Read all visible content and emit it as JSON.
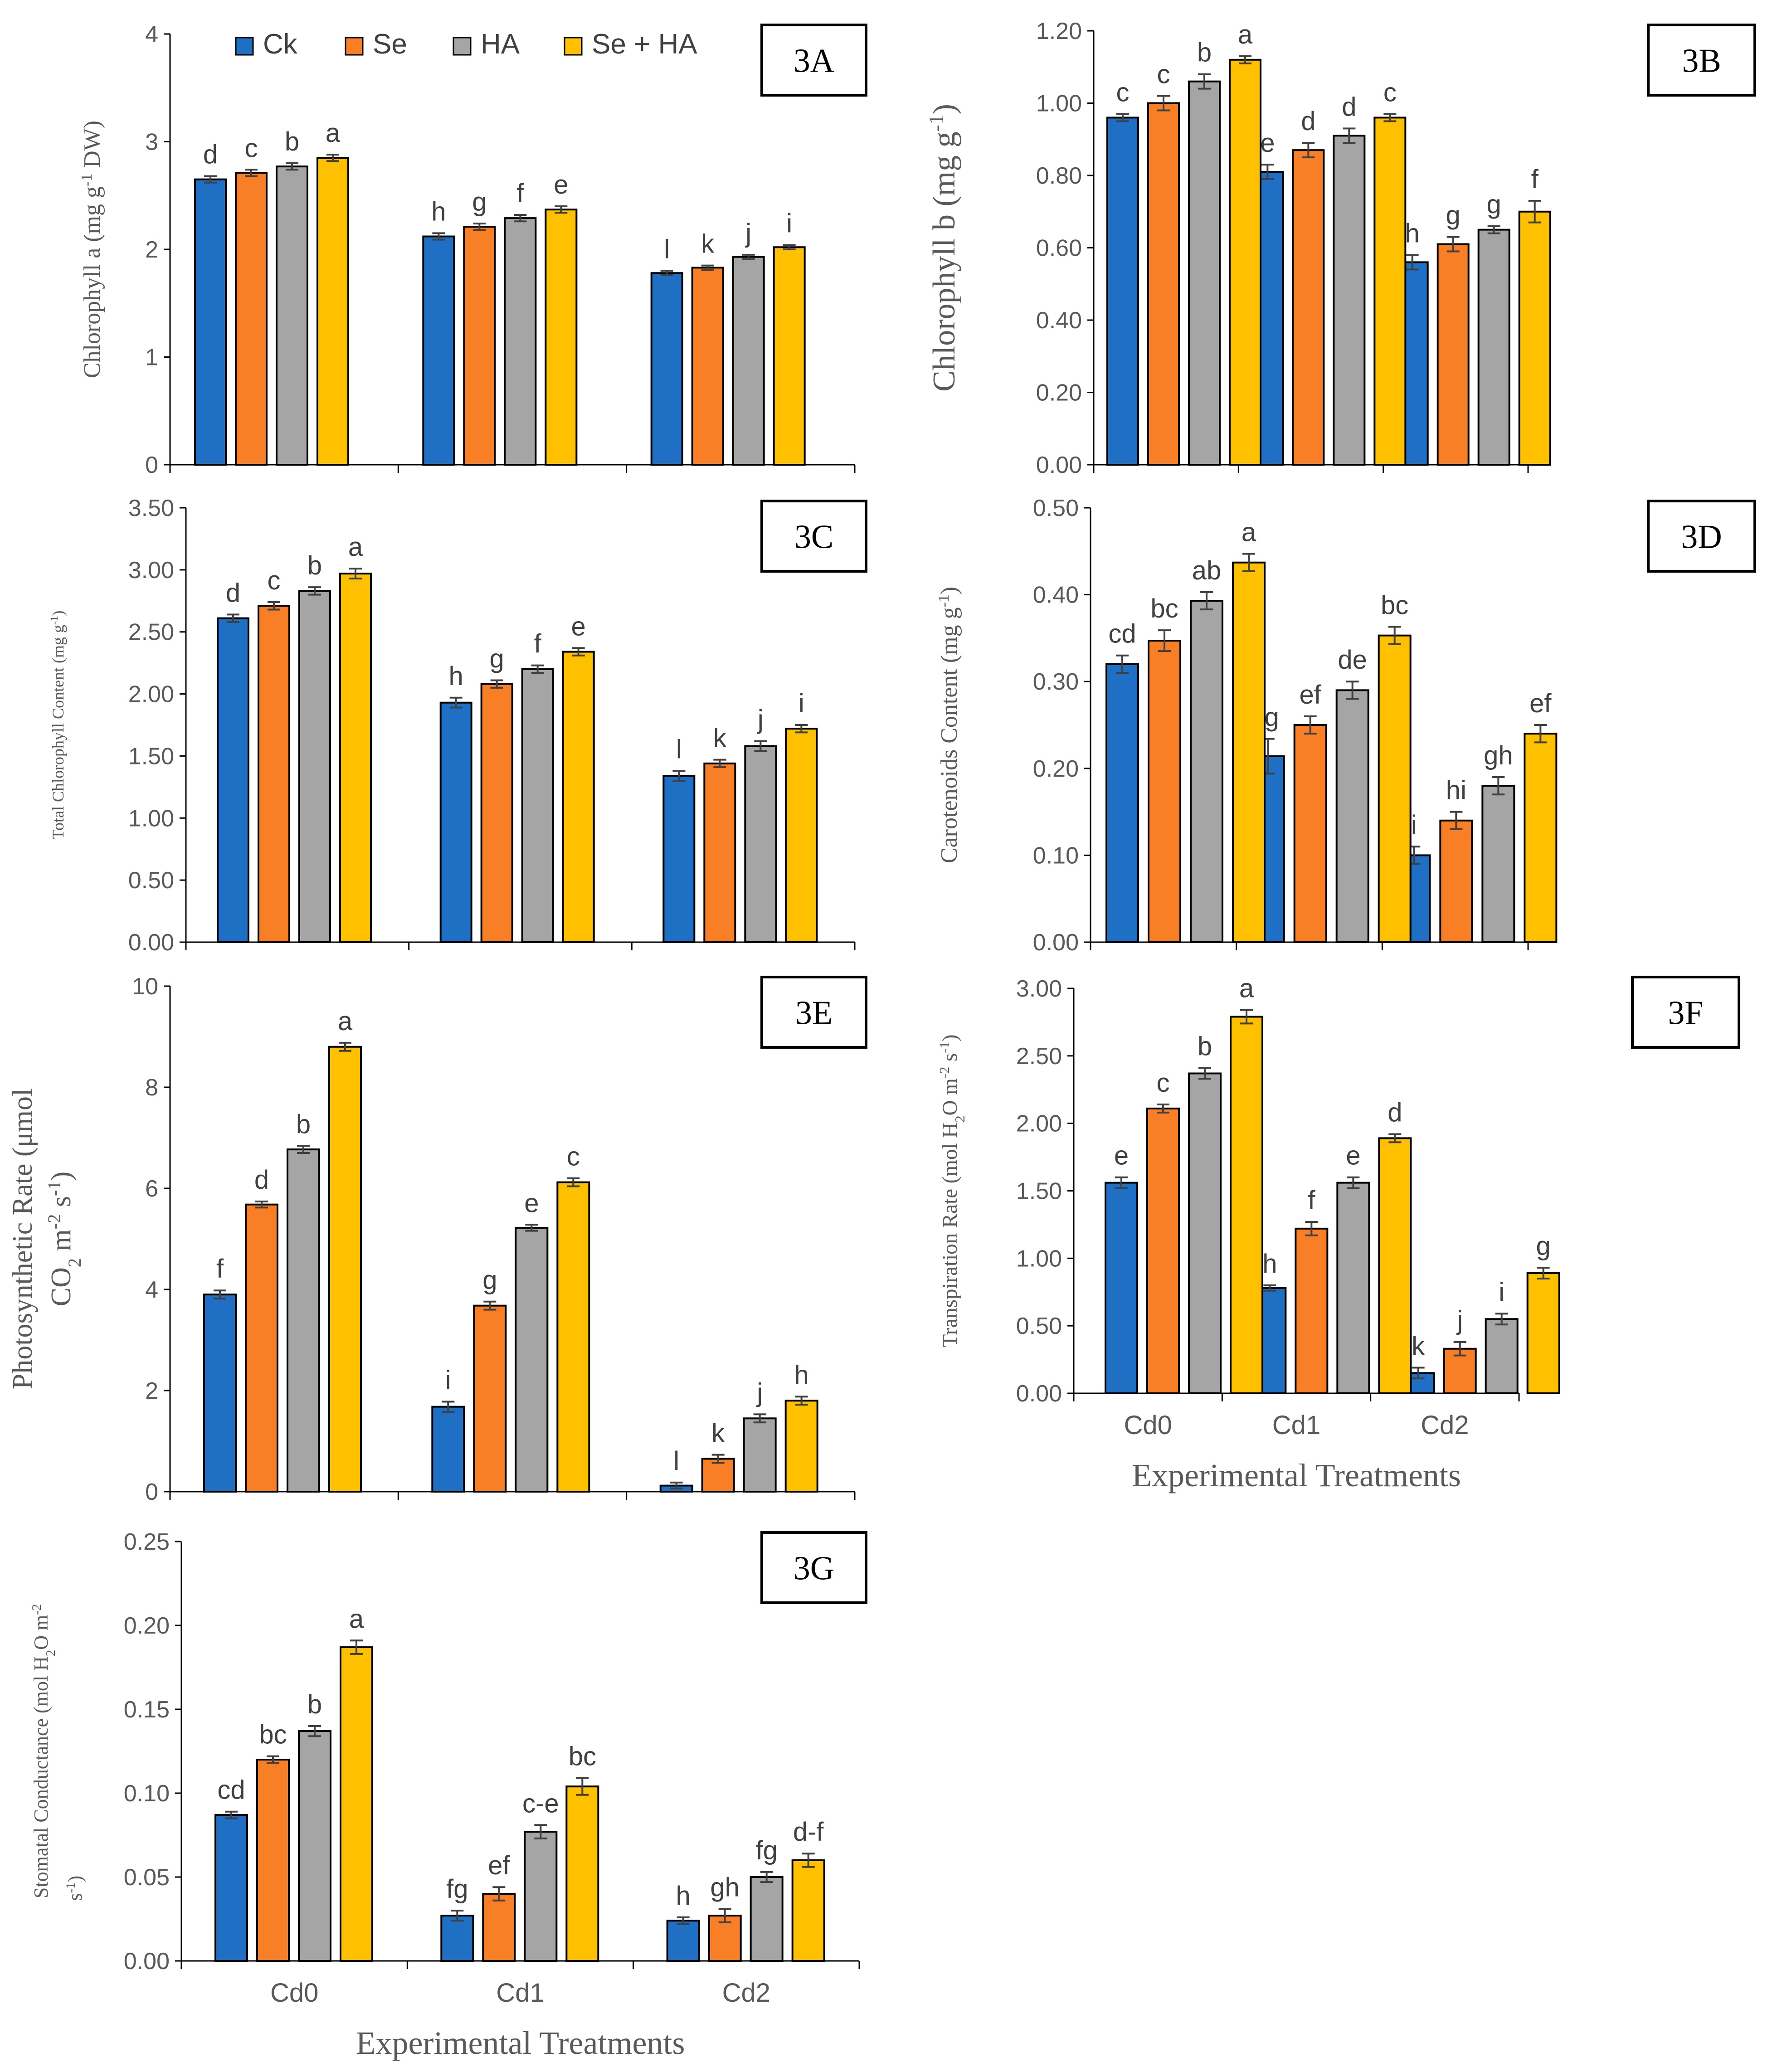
{
  "legend": [
    {
      "name": "Ck",
      "color": "#1f6fc5"
    },
    {
      "name": "Se",
      "color": "#f97f26"
    },
    {
      "name": "HA",
      "color": "#a5a5a5"
    },
    {
      "name": "Se + HA",
      "color": "#ffc000"
    }
  ],
  "x_axis_title": "Experimental Treatments",
  "chart_data": [
    {
      "panel": "3A",
      "type": "bar",
      "ylabel": {
        "text": "Chlorophyll a (mg g",
        "sup": "-1",
        "rest": " DW)"
      },
      "categories": [
        "Cd0",
        "Cd1",
        "Cd2"
      ],
      "ylim": [
        0,
        4
      ],
      "yticks": [
        "0",
        "1",
        "2",
        "3",
        "4"
      ],
      "series": [
        {
          "name": "Ck",
          "values": [
            2.65,
            2.12,
            1.78
          ],
          "errors": [
            0.03,
            0.03,
            0.02
          ],
          "letters": [
            "d",
            "h",
            "l"
          ]
        },
        {
          "name": "Se",
          "values": [
            2.71,
            2.21,
            1.83
          ],
          "errors": [
            0.03,
            0.03,
            0.02
          ],
          "letters": [
            "c",
            "g",
            "k"
          ]
        },
        {
          "name": "HA",
          "values": [
            2.77,
            2.29,
            1.93
          ],
          "errors": [
            0.03,
            0.03,
            0.02
          ],
          "letters": [
            "b",
            "f",
            "j"
          ]
        },
        {
          "name": "Se + HA",
          "values": [
            2.85,
            2.37,
            2.02
          ],
          "errors": [
            0.03,
            0.03,
            0.02
          ],
          "letters": [
            "a",
            "e",
            "i"
          ]
        }
      ]
    },
    {
      "panel": "3B",
      "type": "bar",
      "ylabel": {
        "text": "Chlorophyll b (mg g",
        "sup": "-1",
        "rest": ")"
      },
      "categories": [
        "Cd0",
        "Cd1",
        "Cd2"
      ],
      "ylim": [
        0,
        1.2
      ],
      "yticks": [
        "0.00",
        "0.20",
        "0.40",
        "0.60",
        "0.80",
        "1.00",
        "1.20"
      ],
      "series": [
        {
          "name": "Ck",
          "values": [
            0.96,
            0.81,
            0.56
          ],
          "errors": [
            0.01,
            0.02,
            0.02
          ],
          "letters": [
            "c",
            "e",
            "h"
          ]
        },
        {
          "name": "Se",
          "values": [
            1.0,
            0.87,
            0.61
          ],
          "errors": [
            0.02,
            0.02,
            0.02
          ],
          "letters": [
            "c",
            "d",
            "g"
          ]
        },
        {
          "name": "HA",
          "values": [
            1.06,
            0.91,
            0.65
          ],
          "errors": [
            0.02,
            0.02,
            0.01
          ],
          "letters": [
            "b",
            "d",
            "g"
          ]
        },
        {
          "name": "Se + HA",
          "values": [
            1.12,
            0.96,
            0.7
          ],
          "errors": [
            0.01,
            0.01,
            0.03
          ],
          "letters": [
            "a",
            "c",
            "f"
          ]
        }
      ]
    },
    {
      "panel": "3C",
      "type": "bar",
      "ylabel": {
        "text": "Total Chlorophyll Content (mg g",
        "sup": "-1",
        "rest": ")"
      },
      "categories": [
        "Cd0",
        "Cd1",
        "Cd2"
      ],
      "ylim": [
        0,
        3.5
      ],
      "yticks": [
        "0.00",
        "0.50",
        "1.00",
        "1.50",
        "2.00",
        "2.50",
        "3.00",
        "3.50"
      ],
      "series": [
        {
          "name": "Ck",
          "values": [
            2.61,
            1.93,
            1.34
          ],
          "errors": [
            0.03,
            0.04,
            0.04
          ],
          "letters": [
            "d",
            "h",
            "l"
          ]
        },
        {
          "name": "Se",
          "values": [
            2.71,
            2.08,
            1.44
          ],
          "errors": [
            0.03,
            0.03,
            0.03
          ],
          "letters": [
            "c",
            "g",
            "k"
          ]
        },
        {
          "name": "HA",
          "values": [
            2.83,
            2.2,
            1.58
          ],
          "errors": [
            0.03,
            0.03,
            0.04
          ],
          "letters": [
            "b",
            "f",
            "j"
          ]
        },
        {
          "name": "Se + HA",
          "values": [
            2.97,
            2.34,
            1.72
          ],
          "errors": [
            0.04,
            0.03,
            0.03
          ],
          "letters": [
            "a",
            "e",
            "i"
          ]
        }
      ]
    },
    {
      "panel": "3D",
      "type": "bar",
      "ylabel": {
        "text": "Carotenoids Content (mg g",
        "sup": "-1",
        "rest": ")"
      },
      "categories": [
        "Cd0",
        "Cd1",
        "Cd2"
      ],
      "ylim": [
        0,
        0.5
      ],
      "yticks": [
        "0.00",
        "0.10",
        "0.20",
        "0.30",
        "0.40",
        "0.50"
      ],
      "series": [
        {
          "name": "Ck",
          "values": [
            0.32,
            0.214,
            0.1
          ],
          "errors": [
            0.01,
            0.02,
            0.01
          ],
          "letters": [
            "cd",
            "fg",
            "i"
          ]
        },
        {
          "name": "Se",
          "values": [
            0.347,
            0.25,
            0.14
          ],
          "errors": [
            0.012,
            0.01,
            0.01
          ],
          "letters": [
            "bc",
            "ef",
            "hi"
          ]
        },
        {
          "name": "HA",
          "values": [
            0.393,
            0.29,
            0.18
          ],
          "errors": [
            0.01,
            0.01,
            0.01
          ],
          "letters": [
            "ab",
            "de",
            "gh"
          ]
        },
        {
          "name": "Se + HA",
          "values": [
            0.437,
            0.353,
            0.24
          ],
          "errors": [
            0.01,
            0.01,
            0.01
          ],
          "letters": [
            "a",
            "bc",
            "ef"
          ]
        }
      ]
    },
    {
      "panel": "3E",
      "type": "bar",
      "ylabel": {
        "line1": "Photosynthetic Rate (μmol",
        "line2": "CO",
        "sub": "2",
        "mid": " m",
        "sup1": "-2",
        "mid2": " s",
        "sup2": "-1",
        "end": ")"
      },
      "categories": [
        "Cd0",
        "Cd1",
        "Cd2"
      ],
      "ylim": [
        0,
        10
      ],
      "yticks": [
        "0",
        "2",
        "4",
        "6",
        "8",
        "10"
      ],
      "series": [
        {
          "name": "Ck",
          "values": [
            3.9,
            1.68,
            0.12
          ],
          "errors": [
            0.08,
            0.1,
            0.06
          ],
          "letters": [
            "f",
            "i",
            "l"
          ]
        },
        {
          "name": "Se",
          "values": [
            5.68,
            3.68,
            0.65
          ],
          "errors": [
            0.06,
            0.08,
            0.08
          ],
          "letters": [
            "d",
            "g",
            "k"
          ]
        },
        {
          "name": "HA",
          "values": [
            6.77,
            5.22,
            1.45
          ],
          "errors": [
            0.07,
            0.06,
            0.08
          ],
          "letters": [
            "b",
            "e",
            "j"
          ]
        },
        {
          "name": "Se + HA",
          "values": [
            8.8,
            6.12,
            1.8
          ],
          "errors": [
            0.08,
            0.08,
            0.08
          ],
          "letters": [
            "a",
            "c",
            "h"
          ]
        }
      ]
    },
    {
      "panel": "3F",
      "type": "bar",
      "ylabel": {
        "text": "Transpiration Rate (mol H",
        "sub": "2",
        "mid": "O m",
        "sup1": "-2",
        "mid2": " s",
        "sup2": "-1",
        "end": ")"
      },
      "categories": [
        "Cd0",
        "Cd1",
        "Cd2"
      ],
      "ylim": [
        0,
        3
      ],
      "yticks": [
        "0.00",
        "0.50",
        "1.00",
        "1.50",
        "2.00",
        "2.50",
        "3.00"
      ],
      "xtitle": "Experimental Treatments",
      "series": [
        {
          "name": "Ck",
          "values": [
            1.56,
            0.78,
            0.15
          ],
          "errors": [
            0.04,
            0.02,
            0.04
          ],
          "letters": [
            "e",
            "h",
            "k"
          ]
        },
        {
          "name": "Se",
          "values": [
            2.11,
            1.22,
            0.33
          ],
          "errors": [
            0.03,
            0.05,
            0.05
          ],
          "letters": [
            "c",
            "f",
            "j"
          ]
        },
        {
          "name": "HA",
          "values": [
            2.37,
            1.56,
            0.55
          ],
          "errors": [
            0.04,
            0.04,
            0.04
          ],
          "letters": [
            "b",
            "e",
            "i"
          ]
        },
        {
          "name": "Se + HA",
          "values": [
            2.79,
            1.89,
            0.89
          ],
          "errors": [
            0.05,
            0.03,
            0.04
          ],
          "letters": [
            "a",
            "d",
            "g"
          ]
        }
      ]
    },
    {
      "panel": "3G",
      "type": "bar",
      "ylabel": {
        "line1a": "Stomatal Conductance (mol H",
        "sub": "2",
        "line1b": "O m",
        "sup1": "-2",
        "line2": "s",
        "sup2": "-1",
        "end": ")"
      },
      "categories": [
        "Cd0",
        "Cd1",
        "Cd2"
      ],
      "ylim": [
        0,
        0.25
      ],
      "yticks": [
        "0.00",
        "0.05",
        "0.10",
        "0.15",
        "0.20",
        "0.25"
      ],
      "xtitle": "Experimental Treatments",
      "series": [
        {
          "name": "Ck",
          "values": [
            0.087,
            0.027,
            0.024
          ],
          "errors": [
            0.002,
            0.003,
            0.002
          ],
          "letters": [
            "cd",
            "fg",
            "h"
          ]
        },
        {
          "name": "Se",
          "values": [
            0.12,
            0.04,
            0.027
          ],
          "errors": [
            0.002,
            0.004,
            0.004
          ],
          "letters": [
            "bc",
            "ef",
            "gh"
          ]
        },
        {
          "name": "HA",
          "values": [
            0.137,
            0.077,
            0.05
          ],
          "errors": [
            0.003,
            0.004,
            0.003
          ],
          "letters": [
            "b",
            "c-e",
            "fg"
          ]
        },
        {
          "name": "Se + HA",
          "values": [
            0.187,
            0.104,
            0.06
          ],
          "errors": [
            0.004,
            0.005,
            0.004
          ],
          "letters": [
            "a",
            "bc",
            "d-f"
          ]
        }
      ]
    }
  ]
}
